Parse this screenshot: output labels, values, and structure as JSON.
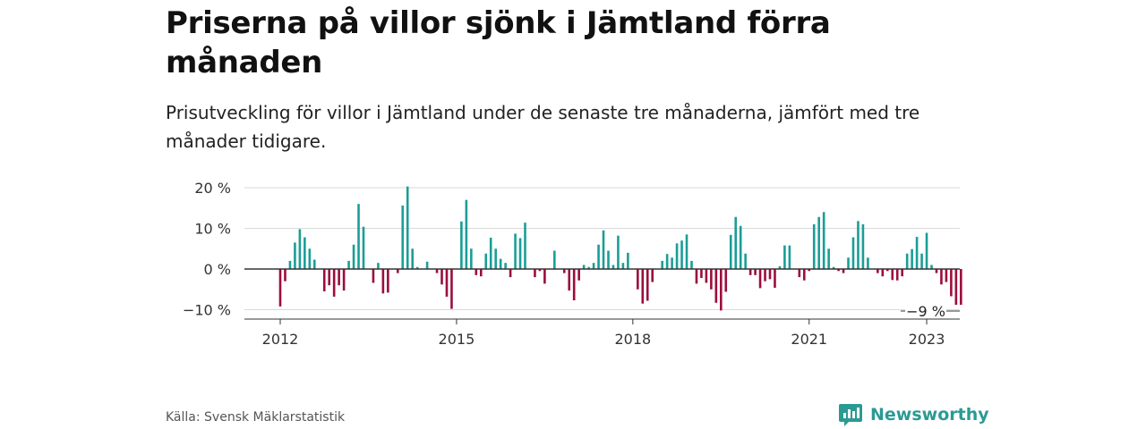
{
  "title": "Priserna på villor sjönk i Jämtland förra månaden",
  "subtitle": "Prisutveckling för villor i Jämtland under de senaste tre månaderna, jämfört med tre månader tidigare.",
  "source": "Källa: Svensk Mäklarstatistik",
  "brand": {
    "name": "Newsworthy",
    "icon": "bar-chart-speech-bubble-icon"
  },
  "colors": {
    "positive": "#1a9e96",
    "negative": "#9b0e3c",
    "grid": "#d9d9d9",
    "axis": "#333333",
    "brand": "#2b9a93"
  },
  "chart_data": {
    "type": "bar",
    "title": "",
    "xlabel": "",
    "ylabel": "",
    "ylim": [
      -12,
      20
    ],
    "yticks": [
      20,
      10,
      0,
      -10
    ],
    "ytick_labels": [
      "20 %",
      "10 %",
      "0 %",
      "−10 %"
    ],
    "xticks": [
      2012,
      2015,
      2018,
      2021,
      2023
    ],
    "xtick_labels": [
      "2012",
      "2015",
      "2018",
      "2021",
      "2023"
    ],
    "grid": true,
    "unit": "%",
    "last_value_label": "−9 %",
    "series": [
      {
        "start": "2012-01",
        "values": [
          -9.2,
          -3,
          2,
          6.5,
          9.8,
          7.8,
          5,
          2.3,
          0,
          -5.5,
          -4,
          -6.8,
          -4,
          -5.3,
          2,
          6,
          16,
          10.4,
          0,
          -3.4,
          1.5,
          -6,
          -5.8,
          0,
          -1,
          15.6,
          20.3,
          5,
          0.5,
          0,
          1.8,
          0,
          -1,
          -3.8,
          -6.8,
          -9.8,
          0,
          11.7,
          17,
          5,
          -1.5,
          -1.8,
          3.8,
          7.7,
          5,
          2.5,
          1.5,
          -2,
          8.7,
          7.6,
          11.4,
          0,
          -2,
          -0.5,
          -3.6,
          0,
          4.5,
          0,
          -1,
          -5.3,
          -7.7,
          -2.8,
          1,
          0.5,
          1.5,
          6,
          9.5,
          4.5,
          1,
          8.2,
          1.5,
          4,
          0,
          -5,
          -8.5,
          -7.8,
          -3.2,
          0,
          2,
          3.7,
          2.8,
          6.3,
          7,
          8.5,
          2,
          -3.6,
          -2.2,
          -3.4,
          -5,
          -8.3,
          -10.2,
          -5.6,
          8.4,
          12.8,
          10.6,
          3.8,
          -1.5,
          -1.5,
          -4.7,
          -3,
          -2.5,
          -4.6,
          0.7,
          5.8,
          5.8,
          0,
          -2,
          -2.8,
          -0.5,
          11,
          12.8,
          14,
          5,
          0.5,
          -0.5,
          -1,
          2.8,
          7.8,
          11.8,
          11,
          2.8,
          0,
          -1,
          -1.8,
          -0.5,
          -2.7,
          -2.8,
          -1.8,
          3.8,
          4.9,
          7.9,
          3.8,
          8.9,
          1,
          -1,
          -3.8,
          -3.2,
          -6.7,
          -8.8,
          -8.8
        ]
      }
    ]
  }
}
